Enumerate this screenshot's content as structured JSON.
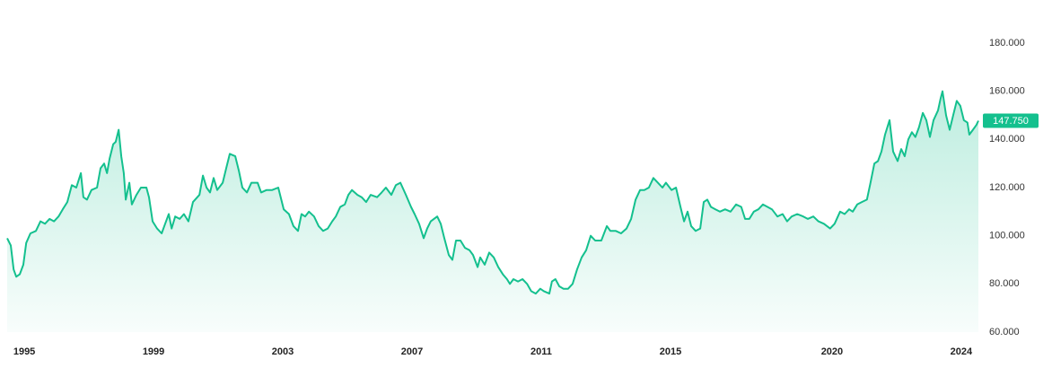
{
  "chart_data": {
    "type": "line",
    "color": "#14c08e",
    "last_value_label": "147.750",
    "xlim": [
      1994.47,
      2024.53
    ],
    "xticks": [
      1995,
      1999,
      2003,
      2007,
      2011,
      2015,
      2020,
      2024
    ],
    "ylim": [
      60,
      180
    ],
    "yticks": [
      {
        "value": 60,
        "label": "60.000"
      },
      {
        "value": 80,
        "label": "80.000"
      },
      {
        "value": 100,
        "label": "100.000"
      },
      {
        "value": 120,
        "label": "120.000"
      },
      {
        "value": 140,
        "label": "140.000"
      },
      {
        "value": 160,
        "label": "160.000"
      },
      {
        "value": 180,
        "label": "180.000"
      }
    ],
    "x": [
      1994.47,
      1994.58,
      1994.67,
      1994.75,
      1994.86,
      1994.97,
      1995.06,
      1995.19,
      1995.36,
      1995.5,
      1995.64,
      1995.78,
      1995.92,
      1996.06,
      1996.19,
      1996.33,
      1996.47,
      1996.61,
      1996.75,
      1996.83,
      1996.94,
      1997.08,
      1997.25,
      1997.36,
      1997.47,
      1997.56,
      1997.64,
      1997.75,
      1997.83,
      1997.92,
      1998.0,
      1998.08,
      1998.14,
      1998.25,
      1998.33,
      1998.47,
      1998.61,
      1998.78,
      1998.86,
      1998.97,
      1999.11,
      1999.25,
      1999.36,
      1999.47,
      1999.56,
      1999.67,
      1999.81,
      1999.94,
      2000.08,
      2000.22,
      2000.42,
      2000.53,
      2000.64,
      2000.75,
      2000.86,
      2000.97,
      2001.14,
      2001.25,
      2001.36,
      2001.53,
      2001.64,
      2001.75,
      2001.89,
      2002.03,
      2002.22,
      2002.33,
      2002.5,
      2002.67,
      2002.86,
      2003.03,
      2003.19,
      2003.33,
      2003.47,
      2003.58,
      2003.69,
      2003.81,
      2003.97,
      2004.11,
      2004.25,
      2004.39,
      2004.53,
      2004.64,
      2004.78,
      2004.92,
      2005.03,
      2005.14,
      2005.31,
      2005.44,
      2005.58,
      2005.72,
      2005.92,
      2006.06,
      2006.19,
      2006.36,
      2006.5,
      2006.64,
      2006.81,
      2006.97,
      2007.08,
      2007.22,
      2007.36,
      2007.47,
      2007.58,
      2007.78,
      2007.89,
      2008.0,
      2008.14,
      2008.25,
      2008.36,
      2008.5,
      2008.64,
      2008.78,
      2008.89,
      2009.03,
      2009.11,
      2009.25,
      2009.39,
      2009.53,
      2009.67,
      2009.81,
      2009.94,
      2010.03,
      2010.14,
      2010.28,
      2010.42,
      2010.56,
      2010.69,
      2010.83,
      2010.97,
      2011.08,
      2011.25,
      2011.33,
      2011.44,
      2011.56,
      2011.69,
      2011.83,
      2011.97,
      2012.11,
      2012.25,
      2012.39,
      2012.53,
      2012.67,
      2012.86,
      2013.03,
      2013.14,
      2013.31,
      2013.47,
      2013.64,
      2013.78,
      2013.92,
      2014.06,
      2014.19,
      2014.33,
      2014.47,
      2014.61,
      2014.75,
      2014.86,
      2015.03,
      2015.17,
      2015.31,
      2015.42,
      2015.53,
      2015.64,
      2015.78,
      2015.92,
      2016.03,
      2016.14,
      2016.25,
      2016.39,
      2016.53,
      2016.69,
      2016.86,
      2017.03,
      2017.19,
      2017.31,
      2017.44,
      2017.58,
      2017.72,
      2017.86,
      2018.0,
      2018.14,
      2018.31,
      2018.47,
      2018.61,
      2018.75,
      2018.92,
      2019.11,
      2019.25,
      2019.42,
      2019.58,
      2019.75,
      2019.94,
      2020.08,
      2020.25,
      2020.39,
      2020.53,
      2020.64,
      2020.78,
      2020.92,
      2021.08,
      2021.19,
      2021.31,
      2021.42,
      2021.53,
      2021.64,
      2021.78,
      2021.89,
      2022.03,
      2022.14,
      2022.25,
      2022.36,
      2022.47,
      2022.58,
      2022.69,
      2022.81,
      2022.92,
      2023.03,
      2023.14,
      2023.28,
      2023.36,
      2023.42,
      2023.53,
      2023.64,
      2023.75,
      2023.86,
      2023.97,
      2024.08,
      2024.19,
      2024.25,
      2024.36,
      2024.47,
      2024.53
    ],
    "values": [
      99,
      96,
      86,
      83,
      84,
      88,
      97,
      101,
      102,
      106,
      105,
      107,
      106,
      108,
      111,
      114,
      121,
      120,
      126,
      116,
      115,
      119,
      120,
      128,
      130,
      126,
      132,
      138,
      139,
      144,
      133,
      126,
      115,
      122,
      113,
      117,
      120,
      120,
      116,
      106,
      103,
      101,
      105,
      109,
      103,
      108,
      107,
      109,
      106,
      114,
      117,
      125,
      120,
      118,
      124,
      119,
      122,
      128,
      134,
      133,
      127,
      120,
      118,
      122,
      122,
      118,
      119,
      119,
      120,
      111,
      109,
      104,
      102,
      109,
      108,
      110,
      108,
      104,
      102,
      103,
      106,
      108,
      112,
      113,
      117,
      119,
      117,
      116,
      114,
      117,
      116,
      118,
      120,
      117,
      121,
      122,
      117,
      112,
      109,
      105,
      99,
      103,
      106,
      108,
      105,
      99,
      92,
      90,
      98,
      98,
      95,
      94,
      92,
      87,
      91,
      88,
      93,
      91,
      87,
      84,
      82,
      80,
      82,
      81,
      82,
      80,
      77,
      76,
      78,
      77,
      76,
      81,
      82,
      79,
      78,
      78,
      80,
      86,
      91,
      94,
      100,
      98,
      98,
      104,
      102,
      102,
      101,
      103,
      107,
      115,
      119,
      119,
      120,
      124,
      122,
      120,
      122,
      119,
      120,
      112,
      106,
      110,
      104,
      102,
      103,
      114,
      115,
      112,
      111,
      110,
      111,
      110,
      113,
      112,
      107,
      107,
      110,
      111,
      113,
      112,
      111,
      108,
      109,
      106,
      108,
      109,
      108,
      107,
      108,
      106,
      105,
      103,
      105,
      110,
      109,
      111,
      110,
      113,
      114,
      115,
      122,
      130,
      131,
      135,
      142,
      148,
      135,
      131,
      136,
      133,
      140,
      143,
      141,
      145,
      151,
      148,
      141,
      148,
      152,
      157,
      160,
      150,
      144,
      150,
      156,
      154,
      148,
      147,
      142,
      144,
      146,
      147.75
    ]
  }
}
